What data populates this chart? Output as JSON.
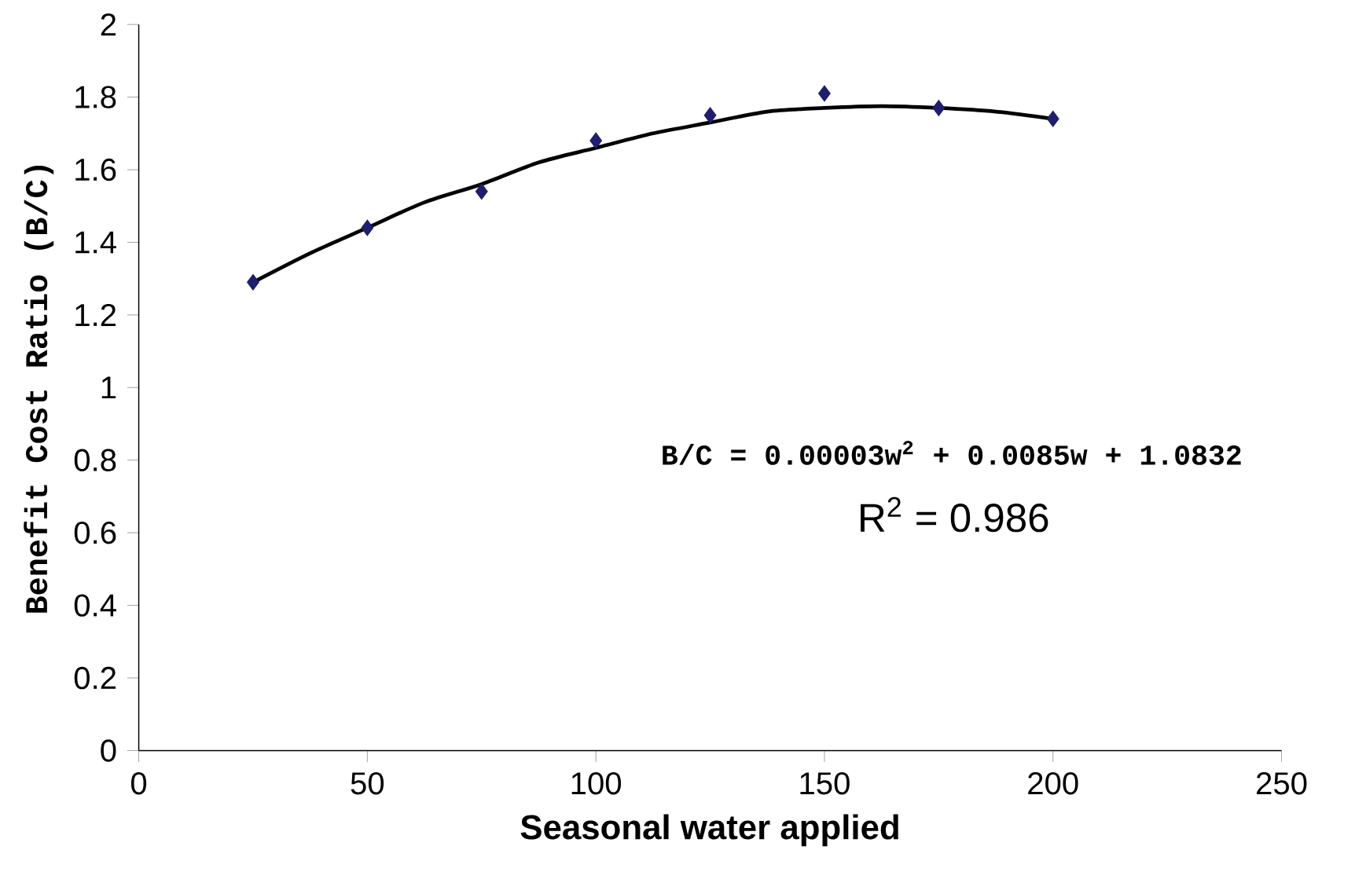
{
  "chart_data": {
    "type": "scatter",
    "xlabel": "Seasonal water applied",
    "ylabel": "Benefit Cost Ratio (B/C)",
    "xlim": [
      0,
      250
    ],
    "xticks": [
      0,
      50,
      100,
      150,
      200,
      250
    ],
    "ylim": [
      0,
      2
    ],
    "yticks": [
      0,
      0.2,
      0.4,
      0.6,
      0.8,
      1,
      1.2,
      1.4,
      1.6,
      1.8,
      2
    ],
    "marker": "diamond",
    "grid": false,
    "series": [
      {
        "color": "#1f1f6e",
        "x": [
          25,
          50,
          75,
          100,
          125,
          150,
          175,
          200
        ],
        "values": [
          1.29,
          1.44,
          1.54,
          1.68,
          1.75,
          1.81,
          1.77,
          1.74
        ]
      },
      {
        "type": "line",
        "marker": "none",
        "color": "#000000",
        "x": [
          25,
          37.5,
          50,
          62.5,
          75,
          87.5,
          100,
          112.5,
          125,
          137.5,
          150,
          162.5,
          175,
          187.5,
          200
        ],
        "values": [
          1.29,
          1.37,
          1.44,
          1.51,
          1.56,
          1.62,
          1.66,
          1.7,
          1.73,
          1.76,
          1.77,
          1.775,
          1.77,
          1.76,
          1.74
        ]
      }
    ],
    "annotations": [
      "B/C = 0.00003w$^{2}$ + 0.0085w + 1.0832",
      "R$^{2}$ = 0.986"
    ]
  }
}
